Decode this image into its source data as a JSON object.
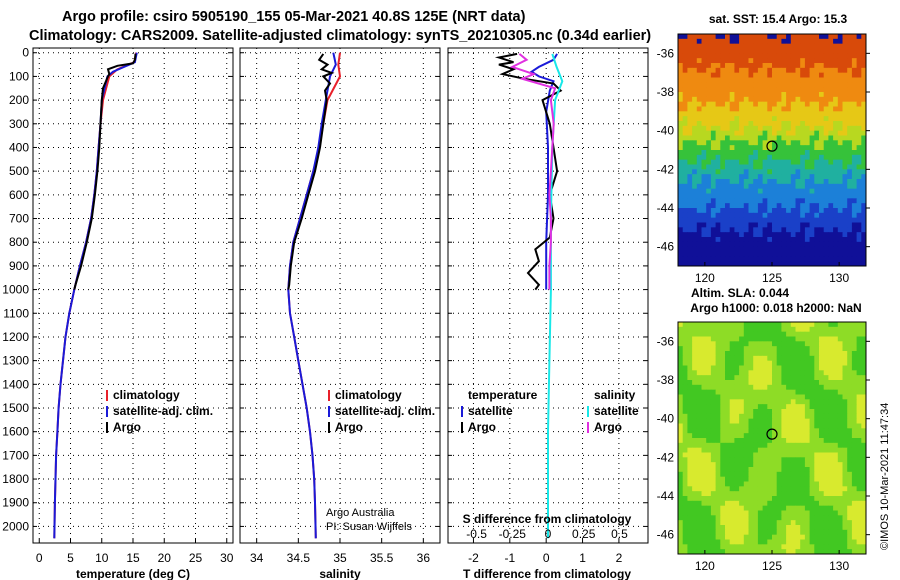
{
  "title": {
    "line1": "Argo profile: csiro 5905190_155 05-Mar-2021 40.8S 125E (NRT data)",
    "line2": "Climatology: CARS2009. Satellite-adjusted climatology: synTS_20210305.nc (0.34d earlier)"
  },
  "depth_ticks": [
    0,
    100,
    200,
    300,
    400,
    500,
    600,
    700,
    800,
    900,
    1000,
    1100,
    1200,
    1300,
    1400,
    1500,
    1600,
    1700,
    1800,
    1900,
    2000
  ],
  "colors": {
    "climatology": "#e8202a",
    "satellite": "#1a1ad8",
    "argo": "#000000",
    "sal_satellite": "#18e8e8",
    "sal_argo": "#e030e0"
  },
  "chart_data": [
    {
      "type": "line",
      "xlabel": "temperature (deg C)",
      "ylabel": "depth",
      "xlim": [
        -1,
        31
      ],
      "ylim": [
        2070,
        -20
      ],
      "xticks": [
        0,
        5,
        10,
        15,
        20,
        25,
        30
      ],
      "legend": {
        "placement": "center-right",
        "entries": [
          "climatology",
          "satellite-adj. clim.",
          "Argo"
        ]
      },
      "series": [
        {
          "name": "climatology",
          "color_key": "climatology",
          "points": [
            [
              15.5,
              0
            ],
            [
              15.2,
              40
            ],
            [
              12.5,
              70
            ],
            [
              11.2,
              100
            ],
            [
              10.2,
              200
            ],
            [
              9.8,
              300
            ],
            [
              9.5,
              400
            ],
            [
              9.2,
              500
            ],
            [
              8.8,
              600
            ],
            [
              8.3,
              700
            ],
            [
              7.5,
              800
            ],
            [
              6.5,
              900
            ],
            [
              5.6,
              1000
            ],
            [
              4.8,
              1100
            ],
            [
              4.2,
              1200
            ],
            [
              3.8,
              1300
            ],
            [
              3.4,
              1400
            ],
            [
              3.1,
              1500
            ],
            [
              2.9,
              1600
            ],
            [
              2.7,
              1700
            ],
            [
              2.6,
              1800
            ],
            [
              2.5,
              1900
            ],
            [
              2.4,
              2050
            ]
          ]
        },
        {
          "name": "satellite-adj. clim.",
          "color_key": "satellite",
          "points": [
            [
              15.6,
              0
            ],
            [
              15.3,
              40
            ],
            [
              11.8,
              80
            ],
            [
              10.9,
              100
            ],
            [
              10.0,
              200
            ],
            [
              9.8,
              300
            ],
            [
              9.5,
              400
            ],
            [
              9.2,
              500
            ],
            [
              8.8,
              600
            ],
            [
              8.3,
              700
            ],
            [
              7.5,
              800
            ],
            [
              6.5,
              900
            ],
            [
              5.6,
              1000
            ],
            [
              4.8,
              1100
            ],
            [
              4.2,
              1200
            ],
            [
              3.8,
              1300
            ],
            [
              3.4,
              1400
            ],
            [
              3.1,
              1500
            ],
            [
              2.9,
              1600
            ],
            [
              2.7,
              1700
            ],
            [
              2.6,
              1800
            ],
            [
              2.5,
              1900
            ],
            [
              2.4,
              2050
            ]
          ]
        },
        {
          "name": "Argo",
          "color_key": "argo",
          "points": [
            [
              15.4,
              5
            ],
            [
              15.3,
              30
            ],
            [
              15.0,
              45
            ],
            [
              12.5,
              55
            ],
            [
              11.0,
              70
            ],
            [
              11.2,
              90
            ],
            [
              11.0,
              100
            ],
            [
              10.2,
              150
            ],
            [
              10.0,
              200
            ],
            [
              9.8,
              300
            ],
            [
              9.6,
              400
            ],
            [
              9.3,
              500
            ],
            [
              8.9,
              600
            ],
            [
              8.4,
              700
            ],
            [
              7.6,
              800
            ],
            [
              6.7,
              900
            ],
            [
              5.8,
              980
            ],
            [
              5.6,
              1000
            ]
          ]
        }
      ]
    },
    {
      "type": "line",
      "xlabel": "salinity",
      "ylabel": "depth",
      "xlim": [
        33.8,
        36.2
      ],
      "ylim": [
        2070,
        -20
      ],
      "xticks": [
        34,
        34.5,
        35,
        35.5,
        36
      ],
      "xtick_labels": [
        "34",
        "34.5",
        "35",
        "35.5",
        "36"
      ],
      "legend": {
        "placement": "center-right",
        "entries": [
          "climatology",
          "satellite-adj. clim.",
          "Argo"
        ]
      },
      "credits": [
        "Argo Australia",
        "PI: Susan Wijffels"
      ],
      "series": [
        {
          "name": "climatology",
          "color_key": "climatology",
          "points": [
            [
              35.0,
              0
            ],
            [
              34.98,
              50
            ],
            [
              35.0,
              100
            ],
            [
              34.85,
              200
            ],
            [
              34.8,
              300
            ],
            [
              34.75,
              400
            ],
            [
              34.68,
              500
            ],
            [
              34.6,
              600
            ],
            [
              34.52,
              700
            ],
            [
              34.44,
              800
            ],
            [
              34.4,
              900
            ],
            [
              34.38,
              1000
            ],
            [
              34.4,
              1100
            ],
            [
              34.45,
              1200
            ],
            [
              34.5,
              1300
            ],
            [
              34.55,
              1400
            ],
            [
              34.6,
              1500
            ],
            [
              34.64,
              1600
            ],
            [
              34.67,
              1700
            ],
            [
              34.69,
              1800
            ],
            [
              34.7,
              1900
            ],
            [
              34.71,
              2050
            ]
          ]
        },
        {
          "name": "satellite-adj. clim.",
          "color_key": "satellite",
          "points": [
            [
              34.92,
              0
            ],
            [
              34.95,
              50
            ],
            [
              34.88,
              100
            ],
            [
              34.83,
              200
            ],
            [
              34.78,
              300
            ],
            [
              34.74,
              400
            ],
            [
              34.68,
              500
            ],
            [
              34.6,
              600
            ],
            [
              34.52,
              700
            ],
            [
              34.44,
              800
            ],
            [
              34.4,
              900
            ],
            [
              34.38,
              1000
            ],
            [
              34.4,
              1100
            ],
            [
              34.45,
              1200
            ],
            [
              34.5,
              1300
            ],
            [
              34.55,
              1400
            ],
            [
              34.6,
              1500
            ],
            [
              34.64,
              1600
            ],
            [
              34.67,
              1700
            ],
            [
              34.69,
              1800
            ],
            [
              34.7,
              1900
            ],
            [
              34.71,
              2050
            ]
          ]
        },
        {
          "name": "Argo",
          "color_key": "argo",
          "points": [
            [
              34.8,
              5
            ],
            [
              34.75,
              30
            ],
            [
              34.85,
              50
            ],
            [
              34.78,
              70
            ],
            [
              34.9,
              85
            ],
            [
              34.8,
              100
            ],
            [
              34.88,
              130
            ],
            [
              34.82,
              160
            ],
            [
              34.84,
              200
            ],
            [
              34.8,
              300
            ],
            [
              34.76,
              400
            ],
            [
              34.7,
              500
            ],
            [
              34.62,
              600
            ],
            [
              34.54,
              700
            ],
            [
              34.45,
              800
            ],
            [
              34.41,
              900
            ],
            [
              34.39,
              980
            ],
            [
              34.38,
              1000
            ]
          ]
        }
      ]
    },
    {
      "type": "line",
      "xlabel": "T difference from climatology",
      "xlabel_top": "S difference from climatology",
      "ylabel": "depth",
      "xlim": [
        -2.7,
        2.8
      ],
      "ylim": [
        2070,
        -20
      ],
      "xticks": [
        -2,
        -1,
        0,
        1,
        2
      ],
      "xtick_labels": [
        "-2",
        "-1",
        "0",
        "1",
        "2"
      ],
      "s_ticks": [
        -0.5,
        -0.25,
        0,
        0.25,
        0.5
      ],
      "s_tick_labels": [
        "-0.5",
        "-0.25",
        "0",
        "0.25",
        "0.5"
      ],
      "legend": {
        "placement": "center-right",
        "temperature_header": "temperature",
        "salinity_header": "salinity",
        "temperature_entries": [
          "satellite",
          "Argo"
        ],
        "salinity_entries": [
          "satellite",
          "Argo"
        ]
      },
      "series": [
        {
          "name": "T satellite",
          "color_key": "satellite",
          "points": [
            [
              0.3,
              5
            ],
            [
              0.2,
              30
            ],
            [
              -0.2,
              60
            ],
            [
              -0.4,
              80
            ],
            [
              -0.2,
              100
            ],
            [
              0.2,
              120
            ],
            [
              0.1,
              160
            ],
            [
              0.0,
              250
            ],
            [
              0.05,
              400
            ],
            [
              0.05,
              600
            ],
            [
              0.0,
              800
            ],
            [
              0.0,
              1000
            ]
          ]
        },
        {
          "name": "T Argo",
          "color_key": "argo",
          "points": [
            [
              -0.8,
              5
            ],
            [
              -1.3,
              20
            ],
            [
              -0.9,
              40
            ],
            [
              -1.3,
              50
            ],
            [
              -0.9,
              70
            ],
            [
              -1.2,
              90
            ],
            [
              -0.6,
              110
            ],
            [
              0.2,
              130
            ],
            [
              0.4,
              160
            ],
            [
              -0.1,
              200
            ],
            [
              0.1,
              300
            ],
            [
              0.2,
              400
            ],
            [
              0.3,
              500
            ],
            [
              0.1,
              600
            ],
            [
              0.2,
              700
            ],
            [
              0.1,
              780
            ],
            [
              -0.3,
              830
            ],
            [
              -0.2,
              880
            ],
            [
              -0.5,
              930
            ],
            [
              -0.2,
              980
            ],
            [
              -0.3,
              1000
            ]
          ]
        },
        {
          "name": "S satellite",
          "color_key": "sal_satellite",
          "points": [
            [
              0.03,
              5
            ],
            [
              0.06,
              60
            ],
            [
              0.1,
              120
            ],
            [
              0.05,
              200
            ],
            [
              0.03,
              400
            ],
            [
              0.02,
              700
            ],
            [
              0.02,
              1000
            ],
            [
              0.01,
              1300
            ],
            [
              0.0,
              1600
            ],
            [
              0.0,
              2050
            ]
          ]
        },
        {
          "name": "S Argo",
          "color_key": "sal_argo",
          "points": [
            [
              -0.2,
              5
            ],
            [
              -0.15,
              30
            ],
            [
              -0.25,
              60
            ],
            [
              -0.1,
              90
            ],
            [
              -0.18,
              110
            ],
            [
              0.05,
              150
            ],
            [
              0.02,
              200
            ],
            [
              0.04,
              300
            ],
            [
              0.03,
              400
            ],
            [
              0.02,
              500
            ],
            [
              0.01,
              600
            ],
            [
              0.02,
              700
            ],
            [
              0.02,
              800
            ],
            [
              0.01,
              900
            ],
            [
              0.01,
              1000
            ]
          ]
        }
      ]
    },
    {
      "type": "heatmap",
      "title": "sat. SST: 15.4 Argo: 15.3",
      "xlim": [
        118,
        132
      ],
      "ylim": [
        -47,
        -35
      ],
      "xticks": [
        120,
        125,
        130
      ],
      "yticks": [
        -36,
        -38,
        -40,
        -42,
        -44,
        -46
      ],
      "marker": {
        "lon": 125,
        "lat": -40.8
      },
      "color_bands": [
        {
          "lat_from": -35,
          "lat_to": -36.8,
          "color": "#d84a0a"
        },
        {
          "lat_from": -36.8,
          "lat_to": -38.6,
          "color": "#ef8a10"
        },
        {
          "lat_from": -38.6,
          "lat_to": -39.8,
          "color": "#e6c816"
        },
        {
          "lat_from": -39.8,
          "lat_to": -40.6,
          "color": "#b8d820"
        },
        {
          "lat_from": -40.6,
          "lat_to": -41.6,
          "color": "#36c23a"
        },
        {
          "lat_from": -41.6,
          "lat_to": -42.6,
          "color": "#20b0a0"
        },
        {
          "lat_from": -42.6,
          "lat_to": -44.0,
          "color": "#1c80d8"
        },
        {
          "lat_from": -44.0,
          "lat_to": -45.2,
          "color": "#1a40c8"
        },
        {
          "lat_from": -45.2,
          "lat_to": -47,
          "color": "#101098"
        }
      ]
    },
    {
      "type": "heatmap",
      "title": "Altim. SLA: 0.044",
      "subtitle": "Argo h1000: 0.018 h2000: NaN",
      "xlim": [
        118,
        132
      ],
      "ylim": [
        -47,
        -35
      ],
      "xticks": [
        120,
        125,
        130
      ],
      "yticks": [
        -36,
        -38,
        -40,
        -42,
        -44,
        -46
      ],
      "marker": {
        "lon": 125,
        "lat": -40.8
      },
      "colors": [
        "#42c822",
        "#8edc26",
        "#d8ea2e"
      ]
    }
  ],
  "watermark": "©IMOS 10-Mar-2021 11:47:34"
}
